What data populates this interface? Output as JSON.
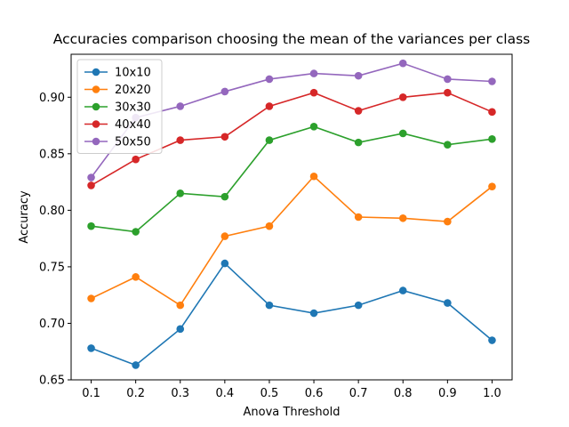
{
  "chart_data": {
    "type": "line",
    "title": "Accuracies comparison choosing the mean of the variances per class",
    "xlabel": "Anova Threshold",
    "ylabel": "Accuracy",
    "x": [
      0.1,
      0.2,
      0.3,
      0.4,
      0.5,
      0.6,
      0.7,
      0.8,
      0.9,
      1.0
    ],
    "x_tick_labels": [
      "0.1",
      "0.2",
      "0.3",
      "0.4",
      "0.5",
      "0.6",
      "0.7",
      "0.8",
      "0.9",
      "1.0"
    ],
    "xlim": [
      0.055,
      1.045
    ],
    "ylim": [
      0.65,
      0.938
    ],
    "y_ticks": [
      0.65,
      0.7,
      0.75,
      0.8,
      0.85,
      0.9
    ],
    "y_tick_labels": [
      "0.65",
      "0.70",
      "0.75",
      "0.80",
      "0.85",
      "0.90"
    ],
    "grid": false,
    "legend_position": "top-left",
    "marker": "circle",
    "series": [
      {
        "name": "10x10",
        "color": "#1f77b4",
        "values": [
          0.678,
          0.663,
          0.695,
          0.753,
          0.716,
          0.709,
          0.716,
          0.729,
          0.718,
          0.685
        ]
      },
      {
        "name": "20x20",
        "color": "#ff7f0e",
        "values": [
          0.722,
          0.741,
          0.716,
          0.777,
          0.786,
          0.83,
          0.794,
          0.793,
          0.79,
          0.821
        ]
      },
      {
        "name": "30x30",
        "color": "#2ca02c",
        "values": [
          0.786,
          0.781,
          0.815,
          0.812,
          0.862,
          0.874,
          0.86,
          0.868,
          0.858,
          0.863
        ]
      },
      {
        "name": "40x40",
        "color": "#d62728",
        "values": [
          0.822,
          0.845,
          0.862,
          0.865,
          0.892,
          0.904,
          0.888,
          0.9,
          0.904,
          0.887
        ]
      },
      {
        "name": "50x50",
        "color": "#9467bd",
        "values": [
          0.829,
          0.882,
          0.892,
          0.905,
          0.916,
          0.921,
          0.919,
          0.93,
          0.916,
          0.914
        ]
      }
    ]
  }
}
